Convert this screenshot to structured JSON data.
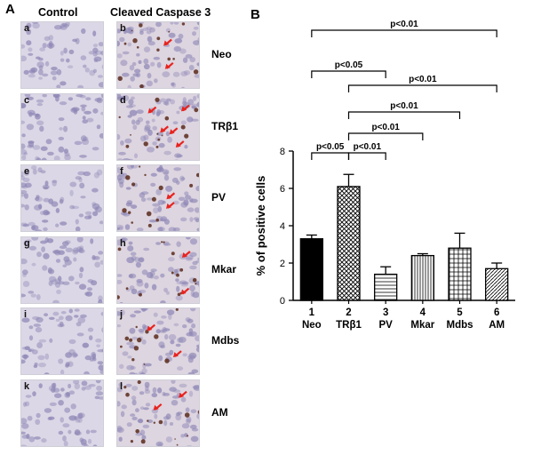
{
  "panel_a_label": "A",
  "panel_b_label": "B",
  "columns": {
    "control": "Control",
    "cleaved": "Cleaved Caspase 3"
  },
  "rows": [
    {
      "label": "Neo",
      "control_letter": "a",
      "cleaved_letter": "b",
      "arrows": 2
    },
    {
      "label": "TRβ1",
      "control_letter": "c",
      "cleaved_letter": "d",
      "arrows": 5
    },
    {
      "label": "PV",
      "control_letter": "e",
      "cleaved_letter": "f",
      "arrows": 2
    },
    {
      "label": "Mkar",
      "control_letter": "g",
      "cleaved_letter": "h",
      "arrows": 2
    },
    {
      "label": "Mdbs",
      "control_letter": "i",
      "cleaved_letter": "j",
      "arrows": 2
    },
    {
      "label": "AM",
      "control_letter": "k",
      "cleaved_letter": "l",
      "arrows": 2
    }
  ],
  "colors": {
    "tissue_bg": "#dcd7e6",
    "nucleus": "#8d86b5",
    "stain": "#5a2a1a",
    "arrow": "#e8231f"
  },
  "chart_data": {
    "type": "bar",
    "title": "",
    "xlabel": "",
    "ylabel": "% of positive cells",
    "ylim": [
      0,
      8
    ],
    "yticks": [
      0,
      2,
      4,
      6,
      8
    ],
    "categories": [
      "1",
      "2",
      "3",
      "4",
      "5",
      "6"
    ],
    "category_names": [
      "Neo",
      "TRβ1",
      "PV",
      "Mkar",
      "Mdbs",
      "AM"
    ],
    "values": [
      3.3,
      6.1,
      1.4,
      2.4,
      2.8,
      1.7
    ],
    "errors": [
      0.2,
      0.65,
      0.4,
      0.1,
      0.8,
      0.3
    ],
    "patterns": [
      "solid",
      "crosshatch",
      "horizontal",
      "vertical",
      "grid",
      "diagonal"
    ],
    "comparisons": [
      {
        "from": 1,
        "to": 6,
        "label": "p<0.01"
      },
      {
        "from": 1,
        "to": 3,
        "label": "p<0.05"
      },
      {
        "from": 2,
        "to": 6,
        "label": "p<0.01"
      },
      {
        "from": 2,
        "to": 5,
        "label": "p<0.01"
      },
      {
        "from": 2,
        "to": 4,
        "label": "p<0.01"
      },
      {
        "from": 1,
        "to": 2,
        "label": "p<0.05"
      },
      {
        "from": 2,
        "to": 3,
        "label": "p<0.01"
      }
    ]
  }
}
